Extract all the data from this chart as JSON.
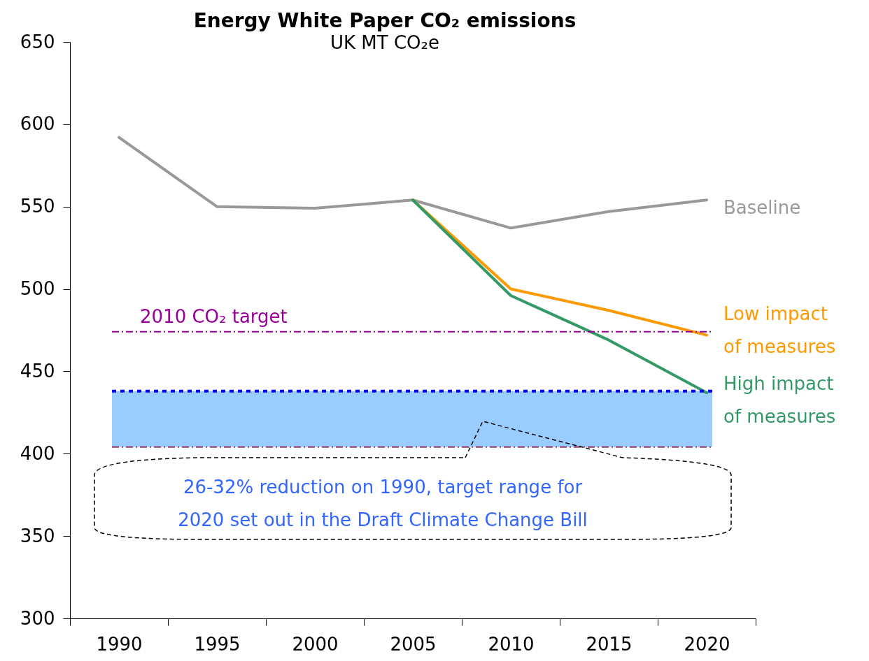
{
  "chart_data": {
    "type": "line",
    "title": "Energy White Paper CO₂ emissions",
    "subtitle": "UK MT CO₂e",
    "categories": [
      "1990",
      "1995",
      "2000",
      "2005",
      "2010",
      "2015",
      "2020"
    ],
    "series": [
      {
        "name": "Baseline",
        "color": "#999999",
        "values": [
          592,
          550,
          549,
          554,
          537,
          547,
          554
        ]
      },
      {
        "name": "Low impact\nof measures",
        "color": "#ff9900",
        "values": [
          null,
          null,
          null,
          554,
          500,
          487,
          472
        ]
      },
      {
        "name": "High impact\nof measures",
        "color": "#339966",
        "values": [
          null,
          null,
          null,
          554,
          496,
          469,
          437
        ]
      }
    ],
    "ylim": [
      300,
      650
    ],
    "yticks": [
      300,
      350,
      400,
      450,
      500,
      550,
      600,
      650
    ],
    "ref_lines": [
      {
        "axis": "y",
        "value": 474,
        "label": "2010 CO₂ target",
        "color": "#990099",
        "line_style": "dashed"
      },
      {
        "axis": "y",
        "value": 438,
        "color": "#0000ff",
        "line_style": "dotted"
      },
      {
        "axis": "y",
        "value": 404,
        "color": "#993366",
        "line_style": "dashed"
      }
    ],
    "bands": [
      {
        "axis": "y",
        "from": 404,
        "to": 438,
        "color": "#99ccff",
        "label": "26-32% reduction on 1990, target range for\n2020 set out in the Draft Climate Change Bill"
      }
    ],
    "grid": false,
    "legend": false
  }
}
